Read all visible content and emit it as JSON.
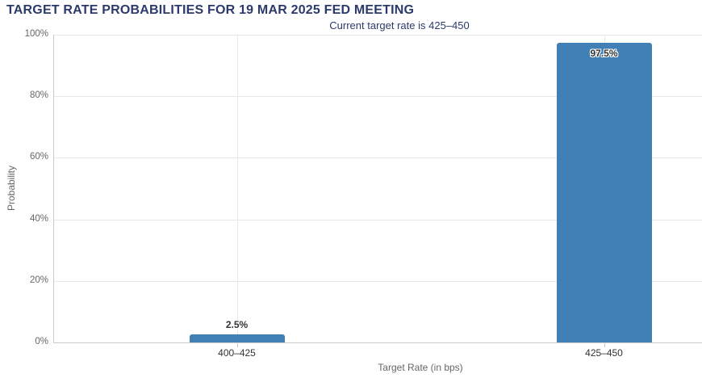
{
  "chart_data": {
    "type": "bar",
    "title": "TARGET RATE PROBABILITIES FOR 19 MAR 2025 FED MEETING",
    "subtitle": "Current target rate is 425–450",
    "xlabel": "Target Rate (in bps)",
    "ylabel": "Probability",
    "categories": [
      "400–425",
      "425–450"
    ],
    "values": [
      2.5,
      97.5
    ],
    "value_labels": [
      "2.5%",
      "97.5%"
    ],
    "yticks": [
      {
        "value": 0,
        "label": "0%"
      },
      {
        "value": 20,
        "label": "20%"
      },
      {
        "value": 40,
        "label": "40%"
      },
      {
        "value": 60,
        "label": "60%"
      },
      {
        "value": 80,
        "label": "80%"
      },
      {
        "value": 100,
        "label": "100%"
      }
    ],
    "ylim": [
      0,
      100
    ],
    "grid": true,
    "legend": "none",
    "colors": {
      "bar": "#4080b4",
      "title_text": "#2b3a6b",
      "grid_line": "#e7e7e7",
      "axis_line": "#cccccc",
      "axis_label_text": "#666666",
      "data_label_text": "#333333",
      "category_text": "#333333"
    }
  }
}
